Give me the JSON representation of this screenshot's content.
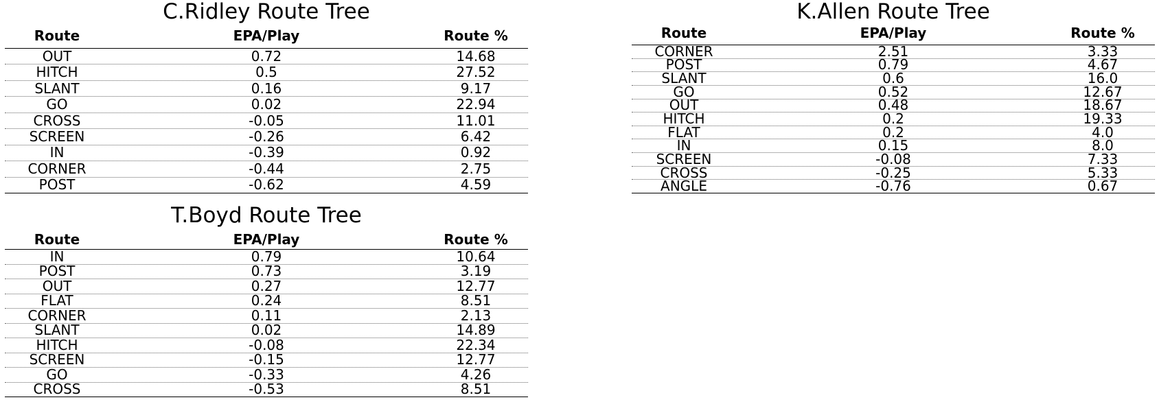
{
  "chart_data": [
    {
      "type": "table",
      "title": "C.Ridley Route Tree",
      "columns": [
        "Route",
        "EPA/Play",
        "Route %"
      ],
      "rows": [
        [
          "OUT",
          "0.72",
          "14.68"
        ],
        [
          "HITCH",
          "0.5",
          "27.52"
        ],
        [
          "SLANT",
          "0.16",
          "9.17"
        ],
        [
          "GO",
          "0.02",
          "22.94"
        ],
        [
          "CROSS",
          "-0.05",
          "11.01"
        ],
        [
          "SCREEN",
          "-0.26",
          "6.42"
        ],
        [
          "IN",
          "-0.39",
          "0.92"
        ],
        [
          "CORNER",
          "-0.44",
          "2.75"
        ],
        [
          "POST",
          "-0.62",
          "4.59"
        ]
      ]
    },
    {
      "type": "table",
      "title": "K.Allen Route Tree",
      "columns": [
        "Route",
        "EPA/Play",
        "Route %"
      ],
      "rows": [
        [
          "CORNER",
          "2.51",
          "3.33"
        ],
        [
          "POST",
          "0.79",
          "4.67"
        ],
        [
          "SLANT",
          "0.6",
          "16.0"
        ],
        [
          "GO",
          "0.52",
          "12.67"
        ],
        [
          "OUT",
          "0.48",
          "18.67"
        ],
        [
          "HITCH",
          "0.2",
          "19.33"
        ],
        [
          "FLAT",
          "0.2",
          "4.0"
        ],
        [
          "IN",
          "0.15",
          "8.0"
        ],
        [
          "SCREEN",
          "-0.08",
          "7.33"
        ],
        [
          "CROSS",
          "-0.25",
          "5.33"
        ],
        [
          "ANGLE",
          "-0.76",
          "0.67"
        ]
      ]
    },
    {
      "type": "table",
      "title": "T.Boyd Route Tree",
      "columns": [
        "Route",
        "EPA/Play",
        "Route %"
      ],
      "rows": [
        [
          "IN",
          "0.79",
          "10.64"
        ],
        [
          "POST",
          "0.73",
          "3.19"
        ],
        [
          "OUT",
          "0.27",
          "12.77"
        ],
        [
          "FLAT",
          "0.24",
          "8.51"
        ],
        [
          "CORNER",
          "0.11",
          "2.13"
        ],
        [
          "SLANT",
          "0.02",
          "14.89"
        ],
        [
          "HITCH",
          "-0.08",
          "22.34"
        ],
        [
          "SCREEN",
          "-0.15",
          "12.77"
        ],
        [
          "GO",
          "-0.33",
          "4.26"
        ],
        [
          "CROSS",
          "-0.53",
          "8.51"
        ]
      ]
    }
  ]
}
